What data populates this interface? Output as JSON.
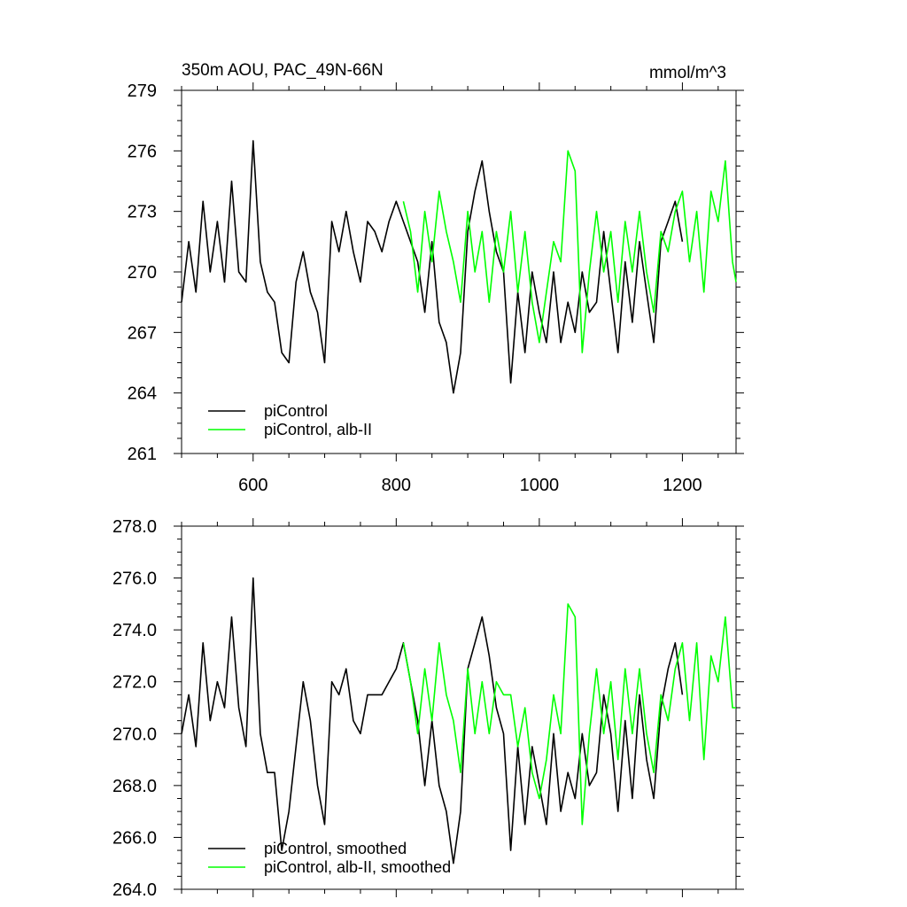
{
  "chart_data": [
    {
      "type": "line",
      "title": "350m AOU, PAC_49N-66N",
      "units": "mmol/m^3",
      "xlim": [
        500,
        1275
      ],
      "ylim": [
        261,
        279
      ],
      "xticks": [
        600,
        800,
        1000,
        1200
      ],
      "yticks": [
        261,
        264,
        267,
        270,
        273,
        276,
        279
      ],
      "xtick_labels": [
        "600",
        "800",
        "1000",
        "1200"
      ],
      "ytick_labels": [
        "261",
        "264",
        "267",
        "270",
        "273",
        "276",
        "279"
      ],
      "grid": false,
      "legend_position": "bottom-left",
      "series": [
        {
          "name": "piControl",
          "color": "#000000",
          "x": [
            500,
            510,
            520,
            530,
            540,
            550,
            560,
            570,
            580,
            590,
            600,
            610,
            620,
            630,
            640,
            650,
            660,
            670,
            680,
            690,
            700,
            710,
            720,
            730,
            740,
            750,
            760,
            770,
            780,
            790,
            800,
            810,
            820,
            830,
            840,
            850,
            860,
            870,
            880,
            890,
            900,
            910,
            920,
            930,
            940,
            950,
            960,
            970,
            980,
            990,
            1000,
            1010,
            1020,
            1030,
            1040,
            1050,
            1060,
            1070,
            1080,
            1090,
            1100,
            1110,
            1120,
            1130,
            1140,
            1150,
            1160,
            1170,
            1180,
            1190,
            1200
          ],
          "values": [
            268.5,
            271.5,
            269.0,
            273.5,
            270.0,
            272.5,
            269.5,
            274.5,
            270.0,
            269.5,
            276.5,
            270.5,
            269.0,
            268.5,
            266.0,
            265.5,
            269.5,
            271.0,
            269.0,
            268.0,
            265.5,
            272.5,
            271.0,
            273.0,
            271.0,
            269.5,
            272.5,
            272.0,
            271.0,
            272.5,
            273.5,
            272.5,
            271.5,
            270.5,
            268.0,
            271.5,
            267.5,
            266.5,
            264.0,
            266.0,
            272.0,
            274.0,
            275.5,
            273.0,
            271.0,
            270.0,
            264.5,
            269.0,
            266.0,
            270.0,
            268.0,
            266.5,
            270.0,
            266.5,
            268.5,
            267.0,
            270.0,
            268.0,
            268.5,
            272.0,
            269.0,
            266.0,
            270.5,
            267.5,
            271.5,
            269.0,
            266.5,
            271.5,
            272.5,
            273.5,
            271.5
          ]
        },
        {
          "name": "piControl, alb-II",
          "color": "#00ff00",
          "x": [
            810,
            820,
            830,
            840,
            850,
            860,
            870,
            880,
            890,
            900,
            910,
            920,
            930,
            940,
            950,
            960,
            970,
            980,
            990,
            1000,
            1010,
            1020,
            1030,
            1040,
            1050,
            1060,
            1070,
            1080,
            1090,
            1100,
            1110,
            1120,
            1130,
            1140,
            1150,
            1160,
            1170,
            1180,
            1190,
            1200,
            1210,
            1220,
            1230,
            1240,
            1250,
            1260,
            1270,
            1275
          ],
          "values": [
            273.5,
            272.0,
            269.0,
            273.0,
            270.5,
            274.0,
            272.0,
            270.5,
            268.5,
            273.0,
            270.0,
            272.0,
            268.5,
            272.0,
            270.0,
            273.0,
            269.0,
            272.0,
            268.5,
            266.5,
            269.0,
            271.5,
            270.5,
            276.0,
            275.0,
            266.0,
            270.0,
            273.0,
            270.0,
            272.0,
            268.5,
            272.5,
            270.0,
            273.0,
            270.0,
            268.0,
            272.0,
            271.0,
            273.0,
            274.0,
            270.5,
            273.0,
            269.0,
            274.0,
            272.5,
            275.5,
            270.5,
            269.5
          ]
        }
      ]
    },
    {
      "type": "line",
      "title": "",
      "xlim": [
        500,
        1275
      ],
      "ylim": [
        264.0,
        278.0
      ],
      "xticks": [
        600,
        800,
        1000,
        1200
      ],
      "yticks": [
        264.0,
        266.0,
        268.0,
        270.0,
        272.0,
        274.0,
        276.0,
        278.0
      ],
      "ytick_labels": [
        "264.0",
        "266.0",
        "268.0",
        "270.0",
        "272.0",
        "274.0",
        "276.0",
        "278.0"
      ],
      "grid": false,
      "legend_position": "bottom-left",
      "series": [
        {
          "name": "piControl, smoothed",
          "color": "#000000",
          "x": [
            500,
            510,
            520,
            530,
            540,
            550,
            560,
            570,
            580,
            590,
            600,
            610,
            620,
            630,
            640,
            650,
            660,
            670,
            680,
            690,
            700,
            710,
            720,
            730,
            740,
            750,
            760,
            770,
            780,
            790,
            800,
            810,
            820,
            830,
            840,
            850,
            860,
            870,
            880,
            890,
            900,
            910,
            920,
            930,
            940,
            950,
            960,
            970,
            980,
            990,
            1000,
            1010,
            1020,
            1030,
            1040,
            1050,
            1060,
            1070,
            1080,
            1090,
            1100,
            1110,
            1120,
            1130,
            1140,
            1150,
            1160,
            1170,
            1180,
            1190,
            1200
          ],
          "values": [
            270.0,
            271.5,
            269.5,
            273.5,
            270.5,
            272.0,
            271.0,
            274.5,
            271.0,
            269.5,
            276.0,
            270.0,
            268.5,
            268.5,
            265.5,
            267.0,
            269.5,
            272.0,
            270.5,
            268.0,
            266.5,
            272.0,
            271.5,
            272.5,
            270.5,
            270.0,
            271.5,
            271.5,
            271.5,
            272.0,
            272.5,
            273.5,
            272.0,
            270.5,
            268.0,
            270.5,
            268.0,
            267.0,
            265.0,
            267.0,
            272.5,
            273.5,
            274.5,
            273.0,
            271.0,
            270.0,
            265.5,
            269.5,
            266.5,
            269.5,
            268.0,
            266.5,
            270.0,
            267.0,
            268.5,
            267.5,
            270.0,
            268.0,
            268.5,
            271.5,
            270.0,
            267.0,
            270.5,
            267.5,
            271.5,
            269.0,
            267.5,
            271.0,
            272.5,
            273.5,
            271.5
          ]
        },
        {
          "name": "piControl, alb-II, smoothed",
          "color": "#00ff00",
          "x": [
            810,
            820,
            830,
            840,
            850,
            860,
            870,
            880,
            890,
            900,
            910,
            920,
            930,
            940,
            950,
            960,
            970,
            980,
            990,
            1000,
            1010,
            1020,
            1030,
            1040,
            1050,
            1060,
            1070,
            1080,
            1090,
            1100,
            1110,
            1120,
            1130,
            1140,
            1150,
            1160,
            1170,
            1180,
            1190,
            1200,
            1210,
            1220,
            1230,
            1240,
            1250,
            1260,
            1270,
            1275
          ],
          "values": [
            273.5,
            272.0,
            270.0,
            272.5,
            270.5,
            273.5,
            271.5,
            270.5,
            268.5,
            272.5,
            270.0,
            272.0,
            270.0,
            272.0,
            271.5,
            271.5,
            269.5,
            271.0,
            268.5,
            267.5,
            269.0,
            271.5,
            270.0,
            275.0,
            274.5,
            266.5,
            270.0,
            272.5,
            270.0,
            272.0,
            269.0,
            272.5,
            270.0,
            272.5,
            270.0,
            268.5,
            271.5,
            270.5,
            272.5,
            273.5,
            270.5,
            273.5,
            269.0,
            273.0,
            272.0,
            274.5,
            271.0,
            271.0
          ]
        }
      ]
    }
  ]
}
